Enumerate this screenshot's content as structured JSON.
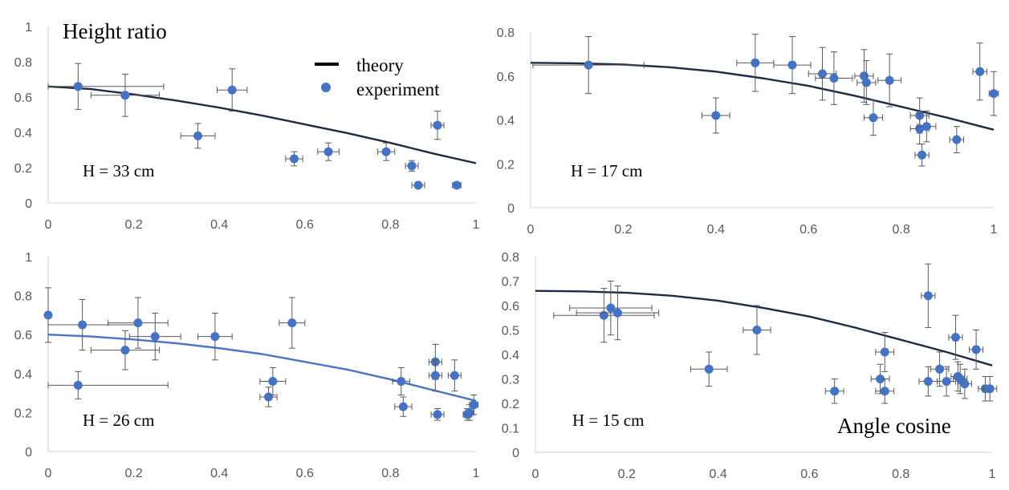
{
  "figure": {
    "x_axis_label": "Angle cosine",
    "y_axis_label": "Height ratio"
  },
  "legend": {
    "theory_label": "theory",
    "experiment_label": "experiment"
  },
  "colors": {
    "theory_dark": "#1f2a44",
    "theory_blue": "#4a74c4",
    "marker": "#4472c4",
    "errorbar": "#595959",
    "axis": "#d9d9d9",
    "tick_text": "#595959"
  },
  "chart_data": [
    {
      "type": "scatter",
      "panel": "top-left",
      "annotation": "H = 33 cm",
      "xlim": [
        0,
        1
      ],
      "ylim": [
        0,
        1
      ],
      "x_ticks": [
        0,
        0.2,
        0.4,
        0.6,
        0.8,
        1
      ],
      "y_ticks": [
        0,
        0.2,
        0.4,
        0.6,
        0.8,
        1
      ],
      "x_tick_labels": [
        "0",
        "0.2",
        "0.4",
        "0.6",
        "0.8",
        "1"
      ],
      "y_tick_labels": [
        "0",
        "0.2",
        "0.4",
        "0.6",
        "0.8",
        "1"
      ],
      "theory_color": "dark",
      "theory": {
        "x": [
          0,
          0.1,
          0.2,
          0.3,
          0.4,
          0.5,
          0.6,
          0.7,
          0.8,
          0.9,
          1.0
        ],
        "y": [
          0.66,
          0.645,
          0.615,
          0.58,
          0.54,
          0.495,
          0.445,
          0.395,
          0.34,
          0.28,
          0.225
        ]
      },
      "experiment": [
        {
          "x": 0.07,
          "y": 0.66,
          "xerr": 0.2,
          "yerr": 0.13
        },
        {
          "x": 0.18,
          "y": 0.61,
          "xerr": 0.08,
          "yerr": 0.12
        },
        {
          "x": 0.35,
          "y": 0.38,
          "xerr": 0.04,
          "yerr": 0.07
        },
        {
          "x": 0.43,
          "y": 0.64,
          "xerr": 0.035,
          "yerr": 0.12
        },
        {
          "x": 0.575,
          "y": 0.25,
          "xerr": 0.02,
          "yerr": 0.04
        },
        {
          "x": 0.655,
          "y": 0.29,
          "xerr": 0.025,
          "yerr": 0.05
        },
        {
          "x": 0.79,
          "y": 0.29,
          "xerr": 0.02,
          "yerr": 0.05
        },
        {
          "x": 0.85,
          "y": 0.21,
          "xerr": 0.015,
          "yerr": 0.03
        },
        {
          "x": 0.865,
          "y": 0.1,
          "xerr": 0.015,
          "yerr": 0
        },
        {
          "x": 0.91,
          "y": 0.44,
          "xerr": 0.015,
          "yerr": 0.08
        },
        {
          "x": 0.955,
          "y": 0.1,
          "xerr": 0.01,
          "yerr": 0
        }
      ]
    },
    {
      "type": "scatter",
      "panel": "top-right",
      "annotation": "H = 17 cm",
      "xlim": [
        0,
        1
      ],
      "ylim": [
        0,
        0.8
      ],
      "x_ticks": [
        0,
        0.2,
        0.4,
        0.6,
        0.8,
        1
      ],
      "y_ticks": [
        0,
        0.2,
        0.4,
        0.6,
        0.8
      ],
      "x_tick_labels": [
        "0",
        "0.2",
        "0.4",
        "0.6",
        "0.8",
        "1"
      ],
      "y_tick_labels": [
        "0",
        "0.2",
        "0.4",
        "0.6",
        "0.8"
      ],
      "theory_color": "dark",
      "theory": {
        "x": [
          0,
          0.1,
          0.2,
          0.3,
          0.4,
          0.5,
          0.6,
          0.7,
          0.8,
          0.9,
          1.0
        ],
        "y": [
          0.66,
          0.658,
          0.652,
          0.64,
          0.62,
          0.59,
          0.555,
          0.51,
          0.46,
          0.41,
          0.355
        ]
      },
      "experiment": [
        {
          "x": 0.125,
          "y": 0.65,
          "xerr": 0.12,
          "yerr": 0.13
        },
        {
          "x": 0.4,
          "y": 0.42,
          "xerr": 0.03,
          "yerr": 0.08
        },
        {
          "x": 0.485,
          "y": 0.66,
          "xerr": 0.04,
          "yerr": 0.13
        },
        {
          "x": 0.565,
          "y": 0.65,
          "xerr": 0.04,
          "yerr": 0.13
        },
        {
          "x": 0.63,
          "y": 0.61,
          "xerr": 0.03,
          "yerr": 0.12
        },
        {
          "x": 0.655,
          "y": 0.59,
          "xerr": 0.04,
          "yerr": 0.12
        },
        {
          "x": 0.72,
          "y": 0.6,
          "xerr": 0.02,
          "yerr": 0.12
        },
        {
          "x": 0.725,
          "y": 0.57,
          "xerr": 0.02,
          "yerr": 0.1
        },
        {
          "x": 0.74,
          "y": 0.41,
          "xerr": 0.02,
          "yerr": 0.08
        },
        {
          "x": 0.775,
          "y": 0.58,
          "xerr": 0.025,
          "yerr": 0.12
        },
        {
          "x": 0.84,
          "y": 0.42,
          "xerr": 0.02,
          "yerr": 0.08
        },
        {
          "x": 0.84,
          "y": 0.36,
          "xerr": 0.02,
          "yerr": 0.07
        },
        {
          "x": 0.855,
          "y": 0.37,
          "xerr": 0.02,
          "yerr": 0.07
        },
        {
          "x": 0.845,
          "y": 0.24,
          "xerr": 0.015,
          "yerr": 0.05
        },
        {
          "x": 0.92,
          "y": 0.31,
          "xerr": 0.015,
          "yerr": 0.06
        },
        {
          "x": 0.97,
          "y": 0.62,
          "xerr": 0.015,
          "yerr": 0.13
        },
        {
          "x": 1.0,
          "y": 0.52,
          "xerr": 0.01,
          "yerr": 0.1
        }
      ]
    },
    {
      "type": "scatter",
      "panel": "bottom-left",
      "annotation": "H = 26 cm",
      "xlim": [
        0,
        1
      ],
      "ylim": [
        0,
        1
      ],
      "x_ticks": [
        0,
        0.2,
        0.4,
        0.6,
        0.8,
        1
      ],
      "y_ticks": [
        0,
        0.2,
        0.4,
        0.6,
        0.8,
        1
      ],
      "x_tick_labels": [
        "0",
        "0.2",
        "0.4",
        "0.6",
        "0.8",
        "1"
      ],
      "y_tick_labels": [
        "0",
        "0.2",
        "0.4",
        "0.6",
        "0.8",
        "1"
      ],
      "theory_color": "blue",
      "theory": {
        "x": [
          0,
          0.1,
          0.2,
          0.3,
          0.4,
          0.5,
          0.6,
          0.7,
          0.8,
          0.9,
          1.0
        ],
        "y": [
          0.6,
          0.59,
          0.575,
          0.555,
          0.53,
          0.5,
          0.46,
          0.42,
          0.37,
          0.315,
          0.26
        ]
      },
      "experiment": [
        {
          "x": 0.0,
          "y": 0.7,
          "xerr": 0,
          "yerr": 0.14
        },
        {
          "x": 0.07,
          "y": 0.34,
          "xerr": 0.21,
          "yerr": 0.07
        },
        {
          "x": 0.08,
          "y": 0.65,
          "xerr": 0.13,
          "yerr": 0.13
        },
        {
          "x": 0.18,
          "y": 0.52,
          "xerr": 0.08,
          "yerr": 0.1
        },
        {
          "x": 0.21,
          "y": 0.66,
          "xerr": 0.07,
          "yerr": 0.13
        },
        {
          "x": 0.25,
          "y": 0.59,
          "xerr": 0.06,
          "yerr": 0.12
        },
        {
          "x": 0.39,
          "y": 0.59,
          "xerr": 0.04,
          "yerr": 0.12
        },
        {
          "x": 0.515,
          "y": 0.28,
          "xerr": 0.02,
          "yerr": 0.05
        },
        {
          "x": 0.525,
          "y": 0.36,
          "xerr": 0.03,
          "yerr": 0.07
        },
        {
          "x": 0.57,
          "y": 0.66,
          "xerr": 0.03,
          "yerr": 0.13
        },
        {
          "x": 0.825,
          "y": 0.36,
          "xerr": 0.02,
          "yerr": 0.07
        },
        {
          "x": 0.83,
          "y": 0.23,
          "xerr": 0.02,
          "yerr": 0.05
        },
        {
          "x": 0.905,
          "y": 0.46,
          "xerr": 0.015,
          "yerr": 0.09
        },
        {
          "x": 0.905,
          "y": 0.39,
          "xerr": 0.015,
          "yerr": 0.08
        },
        {
          "x": 0.91,
          "y": 0.19,
          "xerr": 0.015,
          "yerr": 0.03
        },
        {
          "x": 0.95,
          "y": 0.39,
          "xerr": 0.015,
          "yerr": 0.08
        },
        {
          "x": 0.98,
          "y": 0.19,
          "xerr": 0.01,
          "yerr": 0.03
        },
        {
          "x": 0.985,
          "y": 0.2,
          "xerr": 0.01,
          "yerr": 0.04
        },
        {
          "x": 0.995,
          "y": 0.24,
          "xerr": 0.01,
          "yerr": 0.05
        }
      ]
    },
    {
      "type": "scatter",
      "panel": "bottom-right",
      "annotation": "H = 15 cm",
      "xlim": [
        0,
        1
      ],
      "ylim": [
        0,
        0.8
      ],
      "x_ticks": [
        0,
        0.2,
        0.4,
        0.6,
        0.8,
        1
      ],
      "y_ticks": [
        0,
        0.1,
        0.2,
        0.3,
        0.4,
        0.5,
        0.6,
        0.7,
        0.8
      ],
      "x_tick_labels": [
        "0",
        "0.2",
        "0.4",
        "0.6",
        "0.8",
        "1"
      ],
      "y_tick_labels": [
        "0",
        "0.1",
        "0.2",
        "0.3",
        "0.4",
        "0.5",
        "0.6",
        "0.7",
        "0.8"
      ],
      "theory_color": "dark",
      "theory": {
        "x": [
          0,
          0.1,
          0.2,
          0.3,
          0.4,
          0.5,
          0.6,
          0.7,
          0.8,
          0.9,
          1.0
        ],
        "y": [
          0.66,
          0.658,
          0.652,
          0.64,
          0.62,
          0.59,
          0.555,
          0.51,
          0.46,
          0.41,
          0.355
        ]
      },
      "experiment": [
        {
          "x": 0.15,
          "y": 0.56,
          "xerr": 0.11,
          "yerr": 0.11
        },
        {
          "x": 0.165,
          "y": 0.59,
          "xerr": 0.09,
          "yerr": 0.11
        },
        {
          "x": 0.18,
          "y": 0.57,
          "xerr": 0.09,
          "yerr": 0.11
        },
        {
          "x": 0.38,
          "y": 0.34,
          "xerr": 0.04,
          "yerr": 0.07
        },
        {
          "x": 0.485,
          "y": 0.5,
          "xerr": 0.03,
          "yerr": 0.1
        },
        {
          "x": 0.655,
          "y": 0.25,
          "xerr": 0.02,
          "yerr": 0.05
        },
        {
          "x": 0.755,
          "y": 0.3,
          "xerr": 0.02,
          "yerr": 0.06
        },
        {
          "x": 0.765,
          "y": 0.41,
          "xerr": 0.02,
          "yerr": 0.08
        },
        {
          "x": 0.765,
          "y": 0.25,
          "xerr": 0.02,
          "yerr": 0.05
        },
        {
          "x": 0.86,
          "y": 0.64,
          "xerr": 0.015,
          "yerr": 0.13
        },
        {
          "x": 0.86,
          "y": 0.29,
          "xerr": 0.02,
          "yerr": 0.06
        },
        {
          "x": 0.885,
          "y": 0.34,
          "xerr": 0.02,
          "yerr": 0.07
        },
        {
          "x": 0.9,
          "y": 0.29,
          "xerr": 0.02,
          "yerr": 0.06
        },
        {
          "x": 0.92,
          "y": 0.47,
          "xerr": 0.015,
          "yerr": 0.09
        },
        {
          "x": 0.925,
          "y": 0.31,
          "xerr": 0.015,
          "yerr": 0.06
        },
        {
          "x": 0.93,
          "y": 0.3,
          "xerr": 0.015,
          "yerr": 0.06
        },
        {
          "x": 0.94,
          "y": 0.28,
          "xerr": 0.015,
          "yerr": 0.06
        },
        {
          "x": 0.965,
          "y": 0.42,
          "xerr": 0.015,
          "yerr": 0.08
        },
        {
          "x": 0.985,
          "y": 0.26,
          "xerr": 0.015,
          "yerr": 0.05
        },
        {
          "x": 0.995,
          "y": 0.26,
          "xerr": 0.015,
          "yerr": 0.05
        }
      ]
    }
  ]
}
